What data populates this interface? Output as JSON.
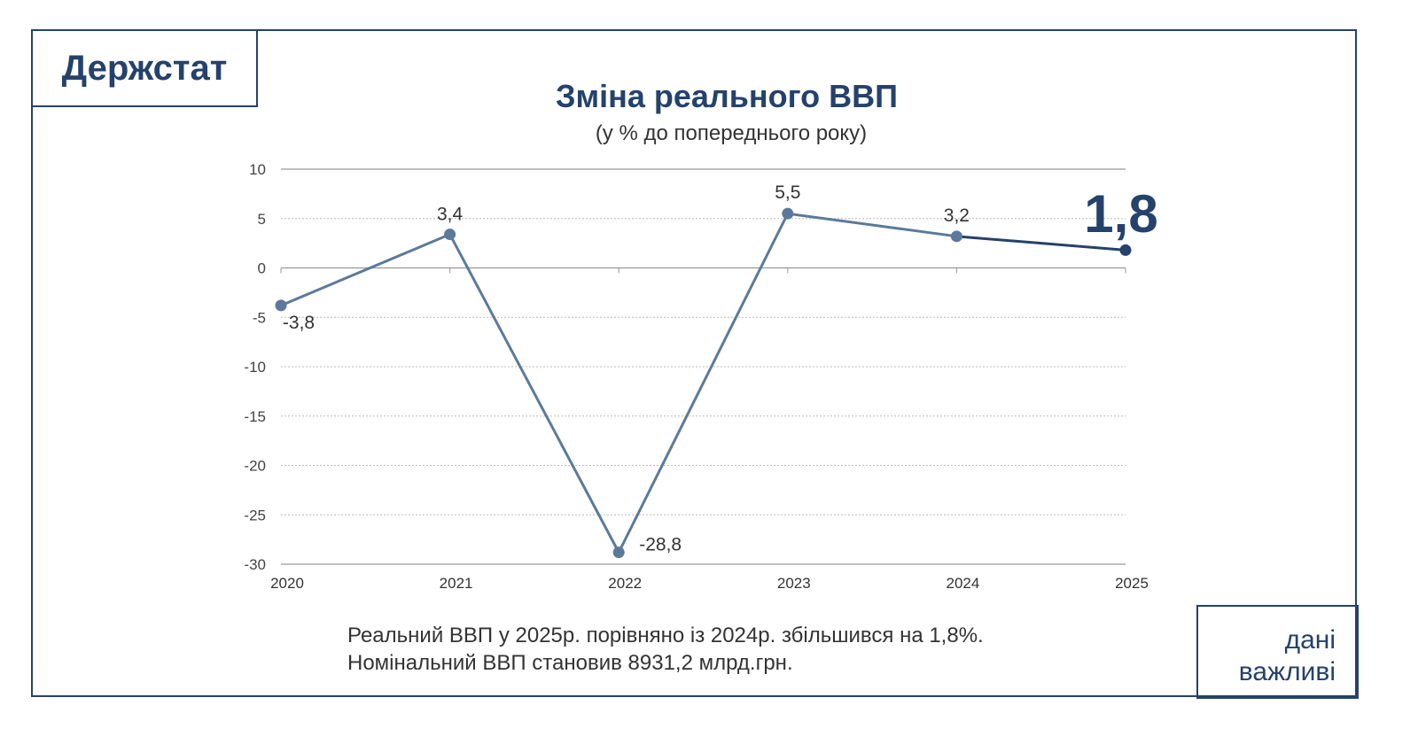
{
  "logo": "Держстат",
  "badge": {
    "line1": "дані",
    "line2": "важливі"
  },
  "note": {
    "line1": "Реальний ВВП у 2025р. порівняно із 2024р. збільшився на 1,8%.",
    "line2": "Номінальний ВВП становив 8931,2 млрд.грн."
  },
  "colors": {
    "navy": "#24426b",
    "line": "#5b7a9b"
  },
  "chart_data": {
    "type": "line",
    "title": "Зміна реального ВВП",
    "subtitle": "(у % до попереднього року)",
    "categories": [
      "2020",
      "2021",
      "2022",
      "2023",
      "2024",
      "2025"
    ],
    "values": [
      -3.8,
      3.4,
      -28.8,
      5.5,
      3.2,
      1.8
    ],
    "labels": [
      "-3,8",
      "3,4",
      "-28,8",
      "5,5",
      "3,2",
      "1,8"
    ],
    "yticks": [
      10,
      5,
      0,
      -5,
      -10,
      -15,
      -20,
      -25,
      -30
    ],
    "ylim": [
      -30,
      10
    ],
    "grid": true
  }
}
